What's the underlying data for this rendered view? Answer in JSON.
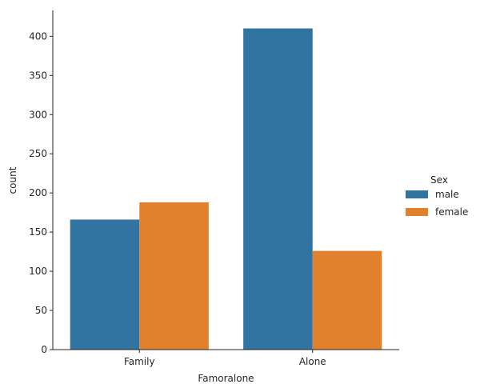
{
  "chart_data": {
    "type": "bar",
    "xlabel": "Famoralone",
    "ylabel": "count",
    "categories": [
      "Family",
      "Alone"
    ],
    "series": [
      {
        "name": "male",
        "values": [
          166,
          410
        ],
        "color": "#3274a1"
      },
      {
        "name": "female",
        "values": [
          188,
          126
        ],
        "color": "#e1812c"
      }
    ],
    "ylim": [
      0,
      432
    ],
    "yticks": [
      0,
      50,
      100,
      150,
      200,
      250,
      300,
      350,
      400
    ],
    "grid": false,
    "legend": {
      "title": "Sex",
      "placement": "right"
    }
  }
}
